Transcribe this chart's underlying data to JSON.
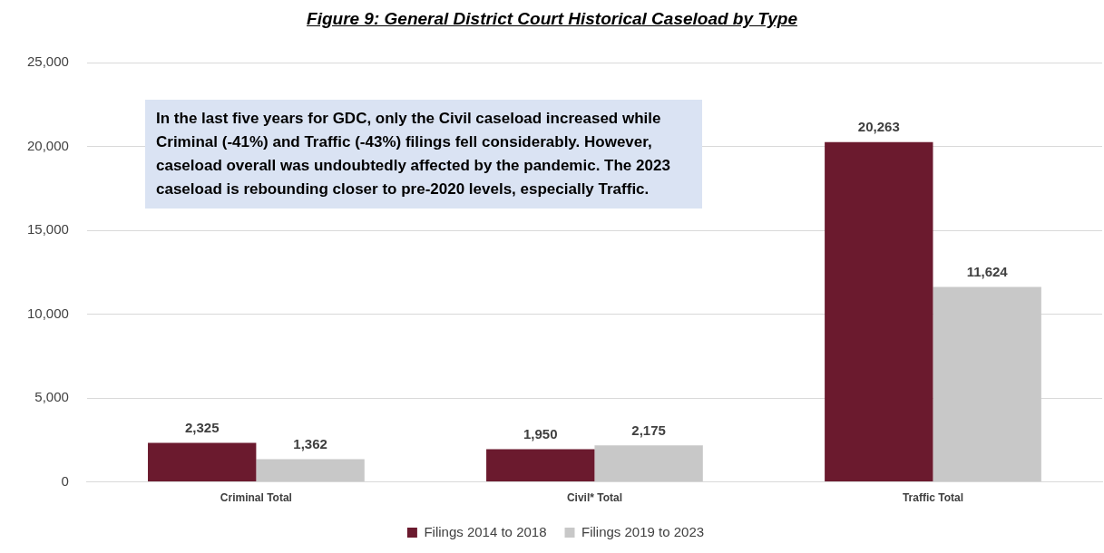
{
  "chart_data": {
    "type": "bar",
    "title": "Figure 9: General District Court Historical Caseload by Type",
    "categories": [
      "Criminal Total",
      "Civil* Total",
      "Traffic Total"
    ],
    "series": [
      {
        "name": "Filings 2014 to 2018",
        "color": "#6b1a2e",
        "values": [
          2325,
          1950,
          20263
        ],
        "value_labels": [
          "2,325",
          "1,950",
          "20,263"
        ]
      },
      {
        "name": "Filings 2019 to 2023",
        "color": "#c8c8c8",
        "values": [
          1362,
          2175,
          11624
        ],
        "value_labels": [
          "1,362",
          "2,175",
          "11,624"
        ]
      }
    ],
    "ylim": [
      0,
      25000
    ],
    "yticks": [
      0,
      {
        "value": 5000,
        "label": "5,000"
      },
      {
        "value": 10000,
        "label": "10,000"
      },
      {
        "value": 15000,
        "label": "15,000"
      },
      {
        "value": 20000,
        "label": "20,000"
      },
      {
        "value": 25000,
        "label": "25,000"
      }
    ],
    "grid": "y",
    "legend": "bottom",
    "annotations": [
      "In the last five years for GDC,  only the Civil caseload increased while Criminal (-41%) and Traffic (-43%) filings fell considerably. However, caseload overall was undoubtedly affected by the pandemic. The 2023 caseload is rebounding closer to pre-2020 levels, especially Traffic."
    ]
  }
}
